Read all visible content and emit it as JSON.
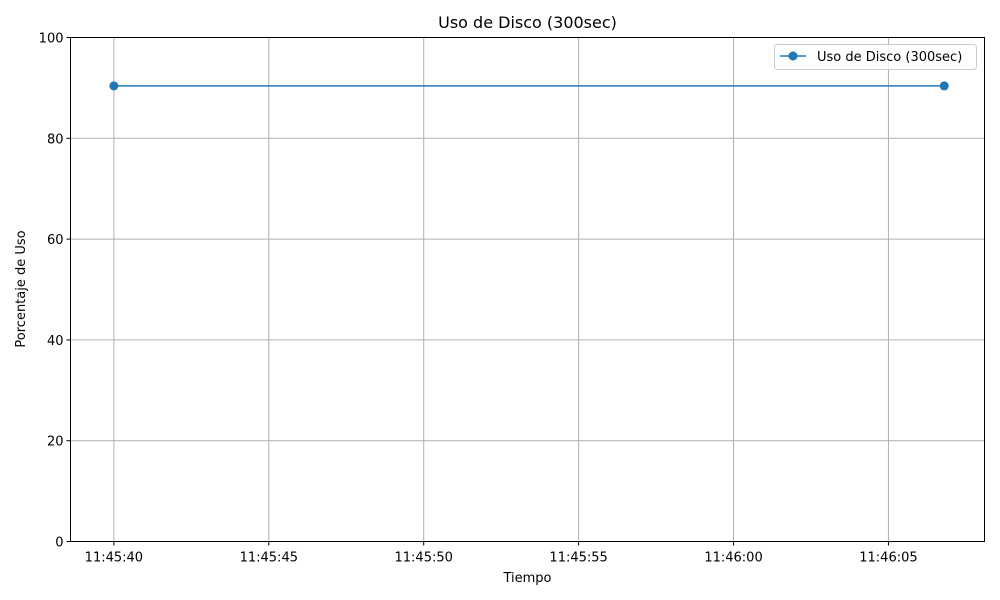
{
  "chart_data": {
    "type": "line",
    "title": "Uso de Disco (300sec)",
    "xlabel": "Tiempo",
    "ylabel": "Porcentaje de Uso",
    "x_type": "time",
    "x_ticks": [
      "11:45:40",
      "11:45:45",
      "11:45:50",
      "11:45:55",
      "11:46:00",
      "11:46:05"
    ],
    "y_ticks": [
      "0",
      "20",
      "40",
      "60",
      "80",
      "100"
    ],
    "ylim": [
      0,
      100
    ],
    "xlim": [
      "11:45:38.6",
      "11:46:08.1"
    ],
    "grid": true,
    "legend_position": "top-right",
    "series": [
      {
        "name": "Uso de Disco (300sec)",
        "color": "#1f77b4",
        "marker": "circle",
        "points": [
          {
            "x": "11:45:40",
            "y": 90.4
          },
          {
            "x": "11:46:06.8",
            "y": 90.4
          }
        ]
      }
    ]
  }
}
